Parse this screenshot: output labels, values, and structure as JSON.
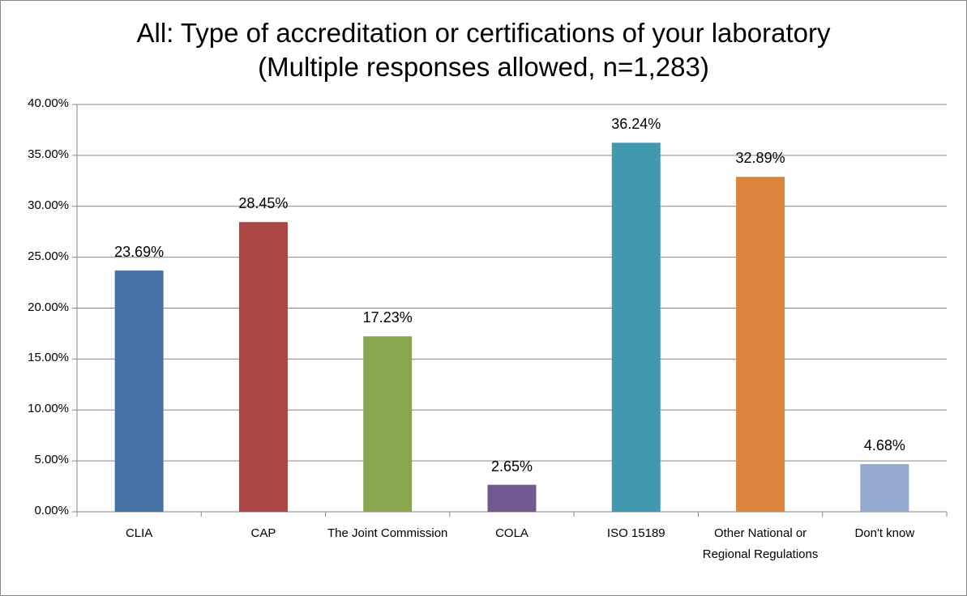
{
  "chart_data": {
    "type": "bar",
    "title": "All: Type of accreditation or certifications of your laboratory (Multiple responses allowed, n=1,283)",
    "categories": [
      "CLIA",
      "CAP",
      "The Joint Commission",
      "COLA",
      "ISO 15189",
      "Other National or Regional Regulations",
      "Don't know"
    ],
    "values": [
      23.69,
      28.45,
      17.23,
      2.65,
      36.24,
      32.89,
      4.68
    ],
    "value_labels": [
      "23.69%",
      "28.45%",
      "17.23%",
      "2.65%",
      "36.24%",
      "32.89%",
      "4.68%"
    ],
    "colors": [
      "#4672a8",
      "#aa4643",
      "#89a54e",
      "#71588f",
      "#4198af",
      "#db843d",
      "#93a9cf"
    ],
    "ylim": [
      0,
      40
    ],
    "yticks": [
      {
        "value": 0,
        "label": "0.00%"
      },
      {
        "value": 5,
        "label": "5.00%"
      },
      {
        "value": 10,
        "label": "10.00%"
      },
      {
        "value": 15,
        "label": "15.00%"
      },
      {
        "value": 20,
        "label": "20.00%"
      },
      {
        "value": 25,
        "label": "25.00%"
      },
      {
        "value": 30,
        "label": "30.00%"
      },
      {
        "value": 35,
        "label": "35.00%"
      },
      {
        "value": 40,
        "label": "40.00%"
      }
    ],
    "grid": true
  }
}
